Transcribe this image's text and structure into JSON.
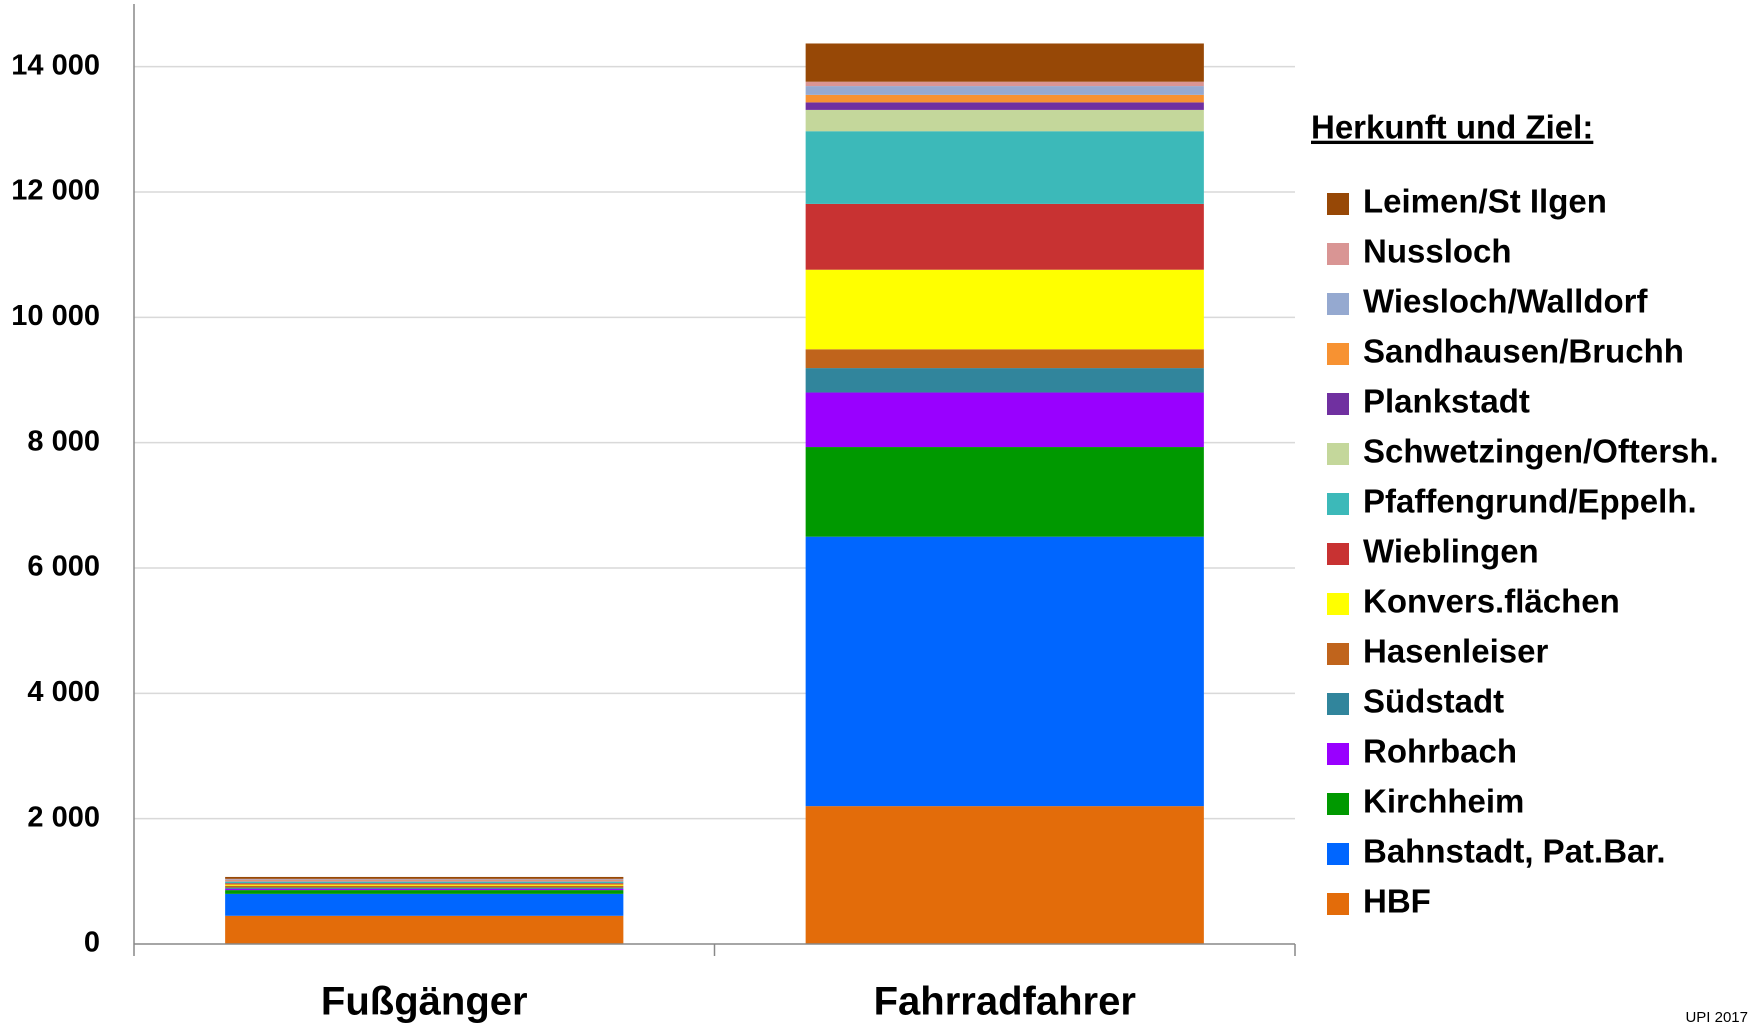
{
  "chart_data": {
    "type": "stacked_bar",
    "categories": [
      "Fußgänger",
      "Fahrradfahrer"
    ],
    "series": [
      {
        "name": "HBF",
        "color": "#e36c0a",
        "values": [
          450,
          2200
        ]
      },
      {
        "name": "Bahnstadt, Pat.Bar.",
        "color": "#0066ff",
        "values": [
          350,
          4300
        ]
      },
      {
        "name": "Kirchheim",
        "color": "#009900",
        "values": [
          60,
          1430
        ]
      },
      {
        "name": "Rohrbach",
        "color": "#9900ff",
        "values": [
          20,
          870
        ]
      },
      {
        "name": "Südstadt",
        "color": "#31859c",
        "values": [
          20,
          390
        ]
      },
      {
        "name": "Hasenleiser",
        "color": "#c0641c",
        "values": [
          30,
          300
        ]
      },
      {
        "name": "Konvers.flächen",
        "color": "#ffff00",
        "values": [
          20,
          1270
        ]
      },
      {
        "name": "Wieblingen",
        "color": "#c83232",
        "values": [
          20,
          1050
        ]
      },
      {
        "name": "Pfaffengrund/Eppelh.",
        "color": "#3cb9b9",
        "values": [
          20,
          1160
        ]
      },
      {
        "name": "Schwetzingen/Oftersh.",
        "color": "#c4d79b",
        "values": [
          10,
          340
        ]
      },
      {
        "name": "Plankstadt",
        "color": "#7030a0",
        "values": [
          10,
          120
        ]
      },
      {
        "name": "Sandhausen/Bruchh",
        "color": "#f79232",
        "values": [
          10,
          120
        ]
      },
      {
        "name": "Wiesloch/Walldorf",
        "color": "#95a9d0",
        "values": [
          10,
          140
        ]
      },
      {
        "name": "Nussloch",
        "color": "#d99594",
        "values": [
          10,
          70
        ]
      },
      {
        "name": "Leimen/St Ilgen",
        "color": "#974806",
        "values": [
          30,
          610
        ]
      }
    ],
    "ylim": [
      0,
      15000
    ],
    "yticks": [
      0,
      {
        "value": 2000,
        "label": "2 000"
      },
      {
        "value": 4000,
        "label": "4 000"
      },
      {
        "value": 6000,
        "label": "6 000"
      },
      {
        "value": 8000,
        "label": "8 000"
      },
      {
        "value": 10000,
        "label": "10 000"
      },
      {
        "value": 12000,
        "label": "12 000"
      },
      {
        "value": 14000,
        "label": "14 000"
      }
    ],
    "grid": true,
    "legend_title": "Herkunft und Ziel:",
    "legend_position": "right",
    "annotation": "UPI 2017"
  }
}
